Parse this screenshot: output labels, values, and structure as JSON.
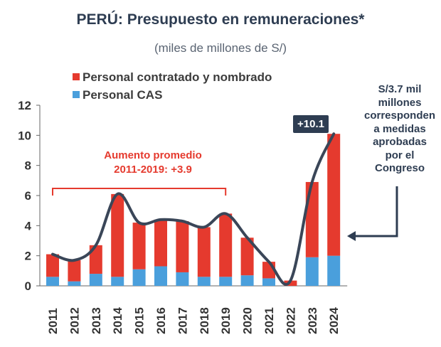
{
  "title": "PERÚ: Presupuesto en remuneraciones*",
  "subtitle": "(miles de millones de S/)",
  "legend": {
    "contratado": "Personal contratado y nombrado",
    "cas": "Personal CAS"
  },
  "annotations": {
    "total_2024": "+10.1",
    "avg_line1": "Aumento promedio",
    "avg_line2": "2011-2019: +3.9",
    "note_lines": [
      "S/3.7 mil",
      "millones",
      "corresponden",
      "a medidas",
      "aprobadas",
      "por el",
      "Congreso"
    ]
  },
  "colors": {
    "contratado": "#e53a2e",
    "cas": "#4a9fdc",
    "line": "#3a4658",
    "dark": "#2e3d52"
  },
  "chart_data": {
    "type": "bar",
    "stacked": true,
    "categories": [
      "2011",
      "2012",
      "2013",
      "2014",
      "2015",
      "2016",
      "2017",
      "2018",
      "2019",
      "2020",
      "2021",
      "2022",
      "2023",
      "2024"
    ],
    "series": [
      {
        "name": "Personal CAS",
        "values": [
          0.6,
          0.3,
          0.8,
          0.6,
          1.1,
          1.3,
          0.9,
          0.6,
          0.6,
          0.7,
          0.5,
          0.0,
          1.9,
          2.0
        ]
      },
      {
        "name": "Personal contratado y nombrado",
        "values": [
          1.5,
          1.4,
          1.9,
          5.5,
          3.1,
          3.1,
          3.4,
          3.3,
          4.2,
          2.5,
          1.1,
          0.35,
          5.0,
          8.1
        ]
      }
    ],
    "trend_line": [
      2.1,
      1.7,
      2.7,
      6.1,
      4.2,
      4.4,
      4.3,
      3.9,
      4.8,
      3.2,
      1.6,
      0.35,
      6.9,
      10.1
    ],
    "yticks": [
      0,
      2,
      4,
      6,
      8,
      10,
      12
    ],
    "ylim": [
      0,
      12
    ],
    "xlabel": "",
    "ylabel": ""
  }
}
